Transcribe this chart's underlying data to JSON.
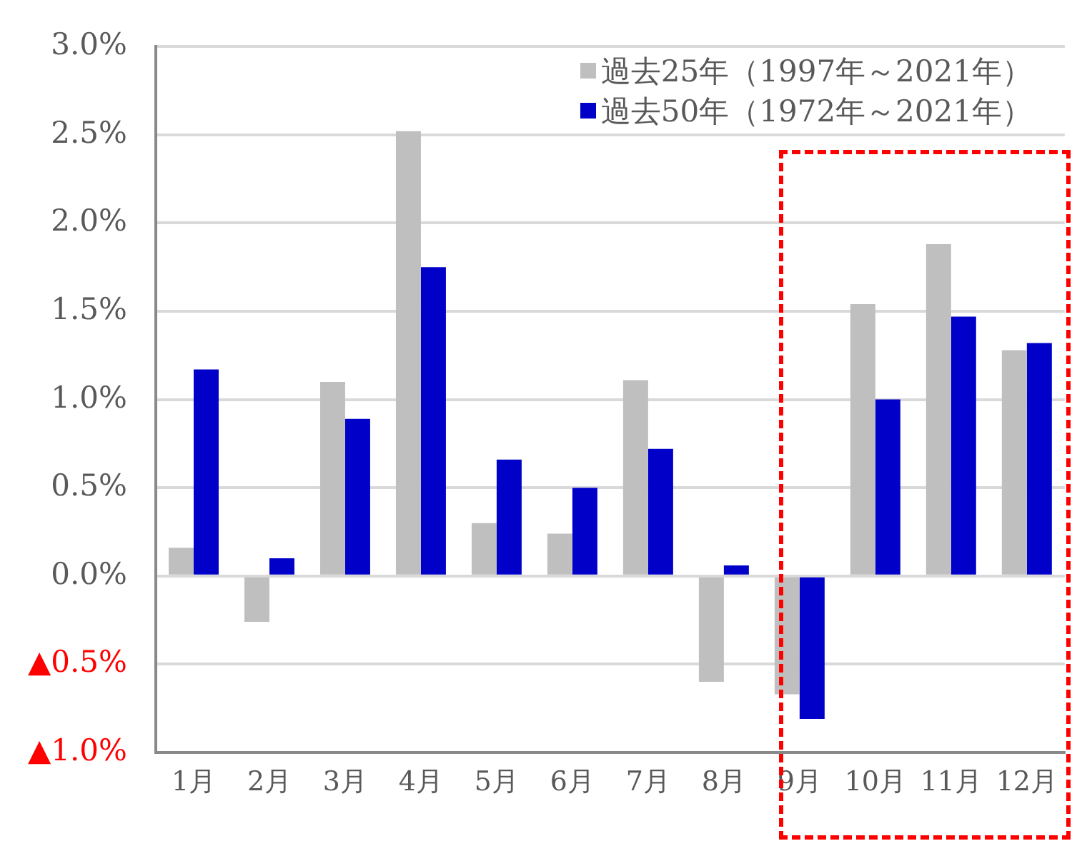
{
  "chart_data": {
    "type": "bar",
    "categories": [
      "1月",
      "2月",
      "3月",
      "4月",
      "5月",
      "6月",
      "7月",
      "8月",
      "9月",
      "10月",
      "11月",
      "12月"
    ],
    "series": [
      {
        "name": "過去25年（1997年～2021年）",
        "color": "#bfbfbf",
        "values": [
          0.16,
          -0.26,
          1.1,
          2.52,
          0.3,
          0.24,
          1.11,
          -0.6,
          -0.67,
          1.54,
          1.88,
          1.28
        ]
      },
      {
        "name": "過去50年（1972年～2021年）",
        "color": "#0000c8",
        "values": [
          1.17,
          0.1,
          0.89,
          1.75,
          0.66,
          0.5,
          0.72,
          0.06,
          -0.81,
          1.0,
          1.47,
          1.32
        ]
      }
    ],
    "ylim": [
      -1.0,
      3.0
    ],
    "yticks": [
      {
        "value": -1.0,
        "label": "▲1.0%"
      },
      {
        "value": -0.5,
        "label": "▲0.5%"
      },
      {
        "value": 0,
        "label": "0.0%"
      },
      {
        "value": 0.5,
        "label": "0.5%"
      },
      {
        "value": 1.0,
        "label": "1.0%"
      },
      {
        "value": 1.5,
        "label": "1.5%"
      },
      {
        "value": 2.0,
        "label": "2.0%"
      },
      {
        "value": 2.5,
        "label": "2.5%"
      },
      {
        "value": 3.0,
        "label": "3.0%"
      }
    ],
    "grid": "y",
    "legend": "top right"
  }
}
